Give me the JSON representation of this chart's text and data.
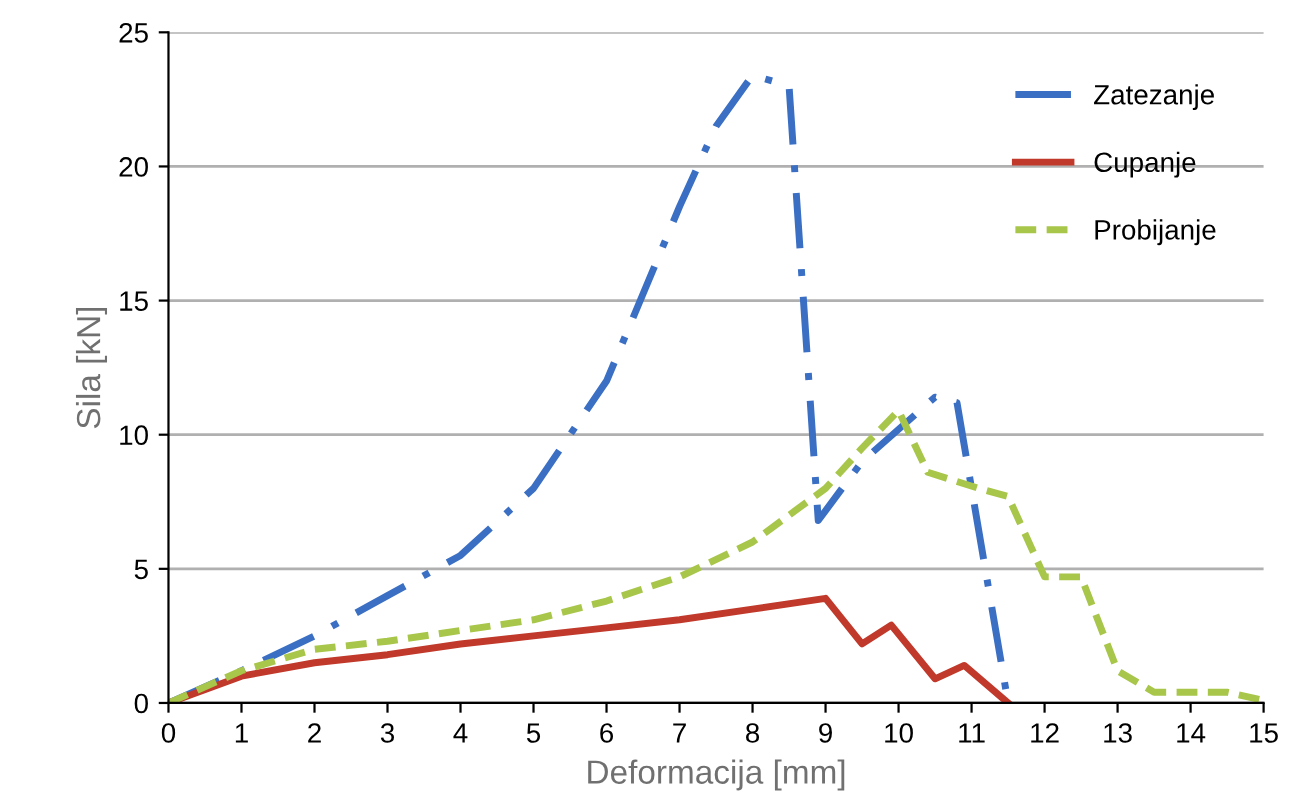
{
  "chart_data": {
    "type": "line",
    "xlabel": "Deformacija [mm]",
    "ylabel": "Sila [kN]",
    "xlim": [
      0,
      15
    ],
    "xticks": [
      0,
      1,
      2,
      3,
      4,
      5,
      6,
      7,
      8,
      9,
      10,
      11,
      12,
      13,
      14,
      15
    ],
    "ylim": [
      0,
      25
    ],
    "yticks": [
      0,
      5,
      10,
      15,
      20,
      25
    ],
    "grid": "y",
    "legend": "top right",
    "marker": "none",
    "series": [
      {
        "name": "Zatezanje",
        "color": "#3a6fc4",
        "line_style": "dashdot",
        "x": [
          0,
          1,
          2,
          3,
          4,
          5,
          6,
          7,
          7.5,
          8,
          8.5,
          8.9,
          9.5,
          10.5,
          10.8,
          11.5
        ],
        "values": [
          0,
          1.2,
          2.5,
          4,
          5.5,
          8,
          12,
          18.5,
          21.5,
          23.4,
          23,
          6.8,
          9,
          11.4,
          11.2,
          0
        ]
      },
      {
        "name": "Cupanje",
        "color": "#c0392b",
        "line_style": "solid",
        "x": [
          0,
          1,
          2,
          3,
          4,
          5,
          6,
          7,
          8,
          9,
          9.5,
          9.9,
          10.5,
          10.9,
          11.5
        ],
        "values": [
          0,
          1,
          1.5,
          1.8,
          2.2,
          2.5,
          2.8,
          3.1,
          3.5,
          3.9,
          2.2,
          2.9,
          0.9,
          1.4,
          0
        ]
      },
      {
        "name": "Probijanje",
        "color": "#a8c64a",
        "line_style": "dashed",
        "x": [
          0,
          1,
          2,
          3,
          4,
          5,
          6,
          7,
          8,
          9,
          9.5,
          10,
          10.4,
          11.1,
          11.5,
          12,
          12.5,
          13,
          13.5,
          14,
          14.5,
          15
        ],
        "values": [
          0,
          1.2,
          2,
          2.3,
          2.7,
          3.1,
          3.8,
          4.7,
          6,
          8,
          9.5,
          10.9,
          8.6,
          8,
          7.7,
          4.7,
          4.7,
          1.2,
          0.4,
          0.4,
          0.4,
          0.1
        ]
      }
    ]
  }
}
